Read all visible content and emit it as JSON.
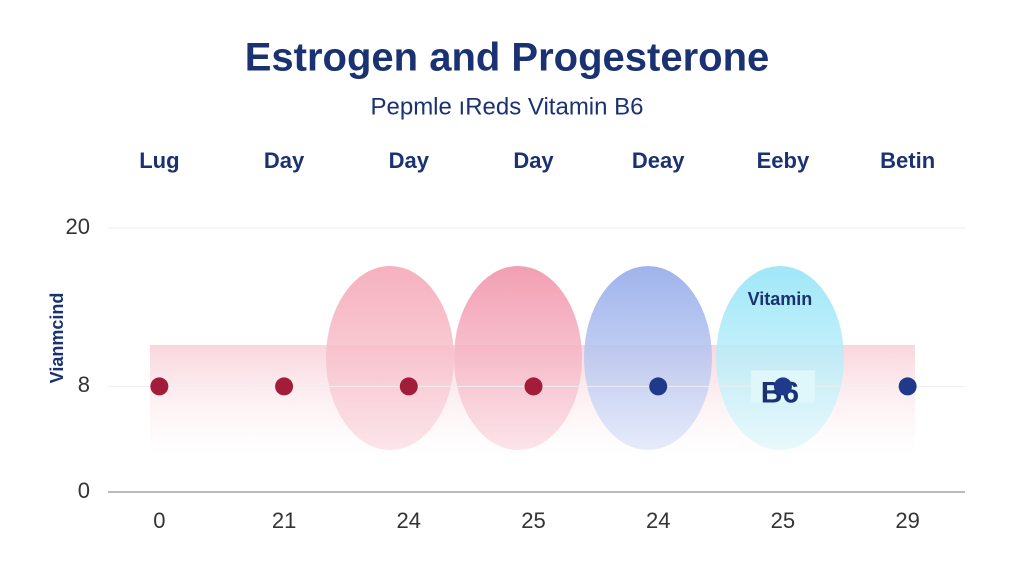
{
  "chart_data": {
    "type": "line",
    "title": "Estrogen and Progesterone",
    "subtitle": "Pepmle ıReds Vitamin B6",
    "y_label": "Vianmcind",
    "top_labels": [
      "Lug",
      "Day",
      "Day",
      "Day",
      "Deay",
      "Eeby",
      "Betin"
    ],
    "categories": [
      "0",
      "21",
      "24",
      "25",
      "24",
      "25",
      "29"
    ],
    "series": [
      {
        "name": "Vitamin B6",
        "color": "#1f3a8a",
        "values": [
          8,
          8,
          8,
          8,
          8,
          8,
          8
        ],
        "point_colors": [
          "#a31d3a",
          "#a31d3a",
          "#a31d3a",
          "#a31d3a",
          "#1f3a8a",
          "#1f3a8a",
          "#1f3a8a"
        ]
      }
    ],
    "annotations": [
      {
        "text": "Vitamin",
        "index": 5
      },
      {
        "text": "B6",
        "index": 5
      }
    ],
    "ylim": [
      0,
      20
    ],
    "yticks": [
      0,
      8,
      20
    ]
  }
}
